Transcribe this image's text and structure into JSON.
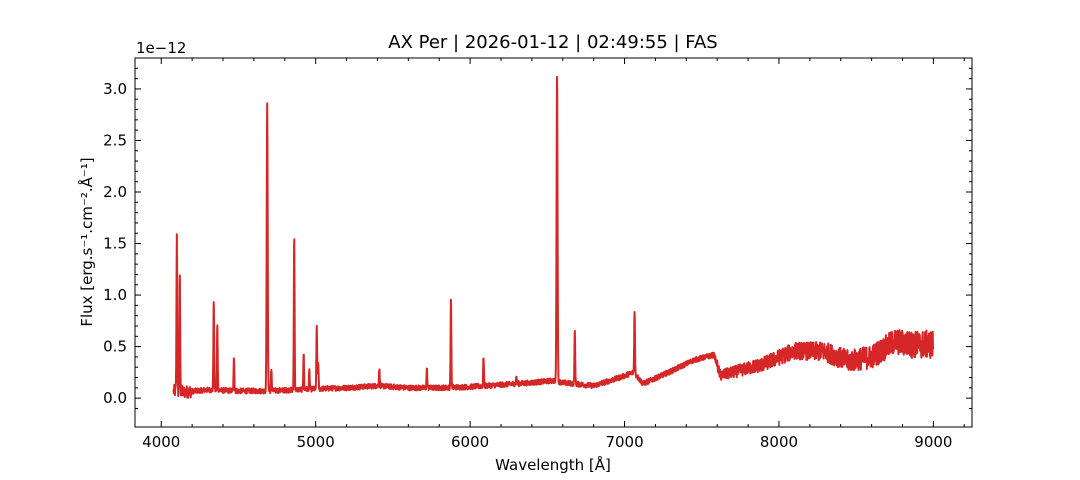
{
  "chart_data": {
    "type": "line",
    "title": "AX Per | 2026-01-12 | 02:49:55 | FAS",
    "xlabel": "Wavelength [Å]",
    "ylabel": "Flux [erg.s⁻¹.cm⁻².Å⁻¹]",
    "offset_text": "1e−12",
    "xlim": [
      3830,
      9250
    ],
    "ylim": [
      -0.28,
      3.3
    ],
    "x_ticks": [
      4000,
      5000,
      6000,
      7000,
      8000,
      9000
    ],
    "x_tick_labels": [
      "4000",
      "5000",
      "6000",
      "7000",
      "8000",
      "9000"
    ],
    "y_ticks": [
      0.0,
      0.5,
      1.0,
      1.5,
      2.0,
      2.5,
      3.0
    ],
    "y_tick_labels": [
      "0.0",
      "0.5",
      "1.0",
      "1.5",
      "2.0",
      "2.5",
      "3.0"
    ],
    "grid": false,
    "series": [
      {
        "color": "#d62728",
        "continuum": [
          [
            4080,
            0.07
          ],
          [
            4150,
            0.06
          ],
          [
            4300,
            0.08
          ],
          [
            4500,
            0.07
          ],
          [
            4700,
            0.07
          ],
          [
            5000,
            0.09
          ],
          [
            5200,
            0.1
          ],
          [
            5400,
            0.12
          ],
          [
            5600,
            0.1
          ],
          [
            5800,
            0.1
          ],
          [
            6000,
            0.11
          ],
          [
            6200,
            0.13
          ],
          [
            6400,
            0.15
          ],
          [
            6540,
            0.17
          ],
          [
            6600,
            0.15
          ],
          [
            6800,
            0.12
          ],
          [
            6950,
            0.19
          ],
          [
            7060,
            0.25
          ],
          [
            7120,
            0.14
          ],
          [
            7300,
            0.26
          ],
          [
            7450,
            0.37
          ],
          [
            7580,
            0.42
          ],
          [
            7620,
            0.22
          ],
          [
            7700,
            0.25
          ],
          [
            7900,
            0.33
          ],
          [
            8100,
            0.46
          ],
          [
            8300,
            0.45
          ],
          [
            8450,
            0.36
          ],
          [
            8600,
            0.4
          ],
          [
            8750,
            0.55
          ],
          [
            8850,
            0.52
          ],
          [
            9000,
            0.52
          ]
        ],
        "emission_lines": [
          [
            4101,
            1.58
          ],
          [
            4120,
            1.17
          ],
          [
            4340,
            0.93
          ],
          [
            4363,
            0.71
          ],
          [
            4471,
            0.4
          ],
          [
            4686,
            2.84
          ],
          [
            4713,
            0.28
          ],
          [
            4861,
            1.59
          ],
          [
            4922,
            0.43
          ],
          [
            4959,
            0.26
          ],
          [
            5007,
            0.7
          ],
          [
            5016,
            0.36
          ],
          [
            5412,
            0.29
          ],
          [
            5720,
            0.28
          ],
          [
            5876,
            0.95
          ],
          [
            6087,
            0.4
          ],
          [
            6300,
            0.21
          ],
          [
            6563,
            3.13
          ],
          [
            6678,
            0.65
          ],
          [
            7065,
            0.86
          ]
        ]
      }
    ]
  }
}
